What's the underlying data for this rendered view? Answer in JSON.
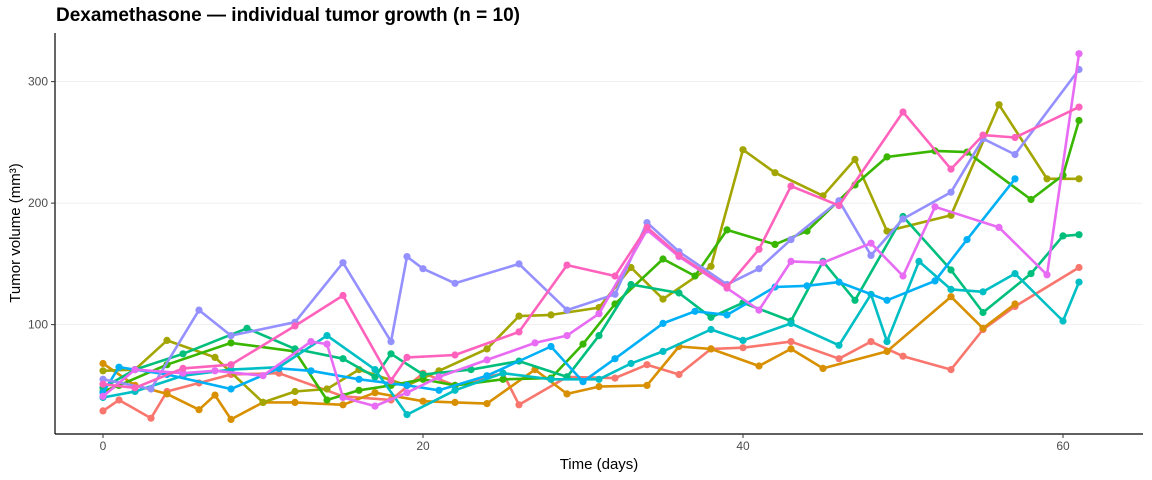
{
  "chart_data": {
    "type": "line",
    "title": "Dexamethasone — individual tumor growth (n = 10)",
    "xlabel": "Time (days)",
    "ylabel": "Tumor volume (mm³)",
    "xlim": [
      -3,
      65
    ],
    "ylim": [
      10,
      340
    ],
    "x_ticks": [
      0,
      20,
      40,
      60
    ],
    "y_ticks": [
      100,
      200,
      300
    ],
    "grid": true,
    "legend": "none",
    "series": [
      {
        "color": "#F8766D",
        "points": [
          [
            0,
            29
          ],
          [
            1,
            38
          ],
          [
            3,
            23
          ],
          [
            4,
            45
          ],
          [
            6,
            52
          ],
          [
            8,
            59
          ],
          [
            11,
            60
          ],
          [
            15,
            41
          ],
          [
            18,
            38
          ],
          [
            20,
            60
          ],
          [
            22,
            50
          ],
          [
            25,
            60
          ],
          [
            26,
            34
          ],
          [
            29,
            57
          ],
          [
            32,
            56
          ],
          [
            34,
            67
          ],
          [
            36,
            59
          ],
          [
            38,
            80
          ],
          [
            40,
            81
          ],
          [
            43,
            86
          ],
          [
            46,
            72
          ],
          [
            48,
            86
          ],
          [
            50,
            74
          ],
          [
            53,
            63
          ],
          [
            55,
            96
          ],
          [
            57,
            115
          ],
          [
            61,
            147
          ]
        ]
      },
      {
        "color": "#D89000",
        "points": [
          [
            0,
            68
          ],
          [
            2,
            50
          ],
          [
            4,
            43
          ],
          [
            6,
            30
          ],
          [
            7,
            42
          ],
          [
            8,
            22
          ],
          [
            10,
            36
          ],
          [
            12,
            36
          ],
          [
            15,
            34
          ],
          [
            17,
            44
          ],
          [
            20,
            37
          ],
          [
            22,
            36
          ],
          [
            24,
            35
          ],
          [
            27,
            63
          ],
          [
            29,
            43
          ],
          [
            31,
            49
          ],
          [
            34,
            50
          ],
          [
            36,
            82
          ],
          [
            38,
            80
          ],
          [
            41,
            66
          ],
          [
            43,
            80
          ],
          [
            45,
            64
          ],
          [
            49,
            78
          ],
          [
            53,
            123
          ],
          [
            55,
            97
          ],
          [
            57,
            117
          ]
        ]
      },
      {
        "color": "#A3A500",
        "points": [
          [
            0,
            62
          ],
          [
            2,
            63
          ],
          [
            4,
            87
          ],
          [
            7,
            73
          ],
          [
            10,
            36
          ],
          [
            12,
            45
          ],
          [
            14,
            47
          ],
          [
            16,
            63
          ],
          [
            19,
            50
          ],
          [
            21,
            62
          ],
          [
            24,
            80
          ],
          [
            26,
            107
          ],
          [
            28,
            108
          ],
          [
            31,
            114
          ],
          [
            33,
            147
          ],
          [
            35,
            121
          ],
          [
            38,
            148
          ],
          [
            40,
            244
          ],
          [
            42,
            225
          ],
          [
            45,
            206
          ],
          [
            47,
            236
          ],
          [
            49,
            177
          ],
          [
            53,
            190
          ],
          [
            56,
            281
          ],
          [
            59,
            220
          ],
          [
            61,
            220
          ]
        ]
      },
      {
        "color": "#39B600",
        "points": [
          [
            0,
            45
          ],
          [
            1,
            50
          ],
          [
            4,
            67
          ],
          [
            8,
            85
          ],
          [
            12,
            78
          ],
          [
            14,
            38
          ],
          [
            16,
            46
          ],
          [
            18,
            50
          ],
          [
            20,
            55
          ],
          [
            22,
            50
          ],
          [
            25,
            55
          ],
          [
            28,
            56
          ],
          [
            30,
            84
          ],
          [
            32,
            117
          ],
          [
            35,
            154
          ],
          [
            37,
            140
          ],
          [
            39,
            178
          ],
          [
            42,
            166
          ],
          [
            44,
            177
          ],
          [
            47,
            215
          ],
          [
            49,
            238
          ],
          [
            52,
            243
          ],
          [
            54,
            242
          ],
          [
            58,
            203
          ],
          [
            60,
            223
          ],
          [
            61,
            268
          ]
        ]
      },
      {
        "color": "#00BF7D",
        "points": [
          [
            0,
            48
          ],
          [
            2,
            63
          ],
          [
            5,
            76
          ],
          [
            9,
            97
          ],
          [
            12,
            80
          ],
          [
            15,
            72
          ],
          [
            17,
            57
          ],
          [
            18,
            76
          ],
          [
            20,
            59
          ],
          [
            23,
            63
          ],
          [
            26,
            70
          ],
          [
            29,
            57
          ],
          [
            31,
            91
          ],
          [
            33,
            133
          ],
          [
            36,
            126
          ],
          [
            38,
            106
          ],
          [
            40,
            118
          ],
          [
            43,
            103
          ],
          [
            45,
            152
          ],
          [
            47,
            120
          ],
          [
            50,
            189
          ],
          [
            53,
            145
          ],
          [
            55,
            110
          ],
          [
            58,
            142
          ],
          [
            60,
            173
          ],
          [
            61,
            174
          ]
        ]
      },
      {
        "color": "#00BFC4",
        "points": [
          [
            0,
            40
          ],
          [
            2,
            45
          ],
          [
            5,
            58
          ],
          [
            8,
            63
          ],
          [
            11,
            65
          ],
          [
            14,
            91
          ],
          [
            17,
            63
          ],
          [
            19,
            26
          ],
          [
            22,
            46
          ],
          [
            25,
            60
          ],
          [
            28,
            55
          ],
          [
            31,
            55
          ],
          [
            33,
            68
          ],
          [
            35,
            78
          ],
          [
            38,
            96
          ],
          [
            40,
            87
          ],
          [
            43,
            101
          ],
          [
            46,
            83
          ],
          [
            48,
            125
          ],
          [
            49,
            86
          ],
          [
            51,
            152
          ],
          [
            53,
            129
          ],
          [
            55,
            127
          ],
          [
            57,
            142
          ],
          [
            60,
            103
          ],
          [
            61,
            135
          ]
        ]
      },
      {
        "color": "#00B0F6",
        "points": [
          [
            0,
            44
          ],
          [
            1,
            65
          ],
          [
            4,
            59
          ],
          [
            8,
            47
          ],
          [
            11,
            64
          ],
          [
            13,
            62
          ],
          [
            16,
            55
          ],
          [
            19,
            50
          ],
          [
            21,
            46
          ],
          [
            24,
            58
          ],
          [
            28,
            82
          ],
          [
            30,
            53
          ],
          [
            32,
            72
          ],
          [
            35,
            101
          ],
          [
            37,
            111
          ],
          [
            39,
            108
          ],
          [
            42,
            131
          ],
          [
            44,
            132
          ],
          [
            46,
            135
          ],
          [
            49,
            120
          ],
          [
            52,
            136
          ],
          [
            54,
            170
          ],
          [
            57,
            220
          ]
        ]
      },
      {
        "color": "#9590FF",
        "points": [
          [
            0,
            55
          ],
          [
            3,
            47
          ],
          [
            6,
            112
          ],
          [
            8,
            91
          ],
          [
            12,
            102
          ],
          [
            15,
            151
          ],
          [
            18,
            86
          ],
          [
            19,
            156
          ],
          [
            20,
            146
          ],
          [
            22,
            134
          ],
          [
            26,
            150
          ],
          [
            29,
            112
          ],
          [
            32,
            125
          ],
          [
            34,
            184
          ],
          [
            36,
            160
          ],
          [
            39,
            133
          ],
          [
            41,
            146
          ],
          [
            43,
            170
          ],
          [
            46,
            202
          ],
          [
            48,
            157
          ],
          [
            50,
            187
          ],
          [
            53,
            209
          ],
          [
            55,
            253
          ],
          [
            57,
            240
          ],
          [
            61,
            310
          ]
        ]
      },
      {
        "color": "#E76BF3",
        "points": [
          [
            0,
            41
          ],
          [
            2,
            63
          ],
          [
            5,
            60
          ],
          [
            7,
            62
          ],
          [
            10,
            58
          ],
          [
            13,
            86
          ],
          [
            14,
            84
          ],
          [
            15,
            40
          ],
          [
            17,
            33
          ],
          [
            19,
            44
          ],
          [
            21,
            57
          ],
          [
            24,
            71
          ],
          [
            27,
            85
          ],
          [
            29,
            91
          ],
          [
            31,
            109
          ],
          [
            34,
            178
          ],
          [
            36,
            156
          ],
          [
            39,
            130
          ],
          [
            41,
            112
          ],
          [
            43,
            152
          ],
          [
            45,
            151
          ],
          [
            48,
            167
          ],
          [
            50,
            140
          ],
          [
            52,
            197
          ],
          [
            56,
            180
          ],
          [
            59,
            141
          ],
          [
            61,
            323
          ]
        ]
      },
      {
        "color": "#FF62BC",
        "points": [
          [
            0,
            51
          ],
          [
            2,
            48
          ],
          [
            5,
            64
          ],
          [
            8,
            67
          ],
          [
            12,
            99
          ],
          [
            15,
            124
          ],
          [
            18,
            54
          ],
          [
            19,
            73
          ],
          [
            22,
            75
          ],
          [
            26,
            94
          ],
          [
            29,
            149
          ],
          [
            32,
            140
          ],
          [
            34,
            180
          ],
          [
            36,
            157
          ],
          [
            39,
            131
          ],
          [
            41,
            162
          ],
          [
            43,
            214
          ],
          [
            46,
            198
          ],
          [
            50,
            275
          ],
          [
            53,
            228
          ],
          [
            55,
            256
          ],
          [
            57,
            254
          ],
          [
            61,
            279
          ]
        ]
      }
    ]
  }
}
